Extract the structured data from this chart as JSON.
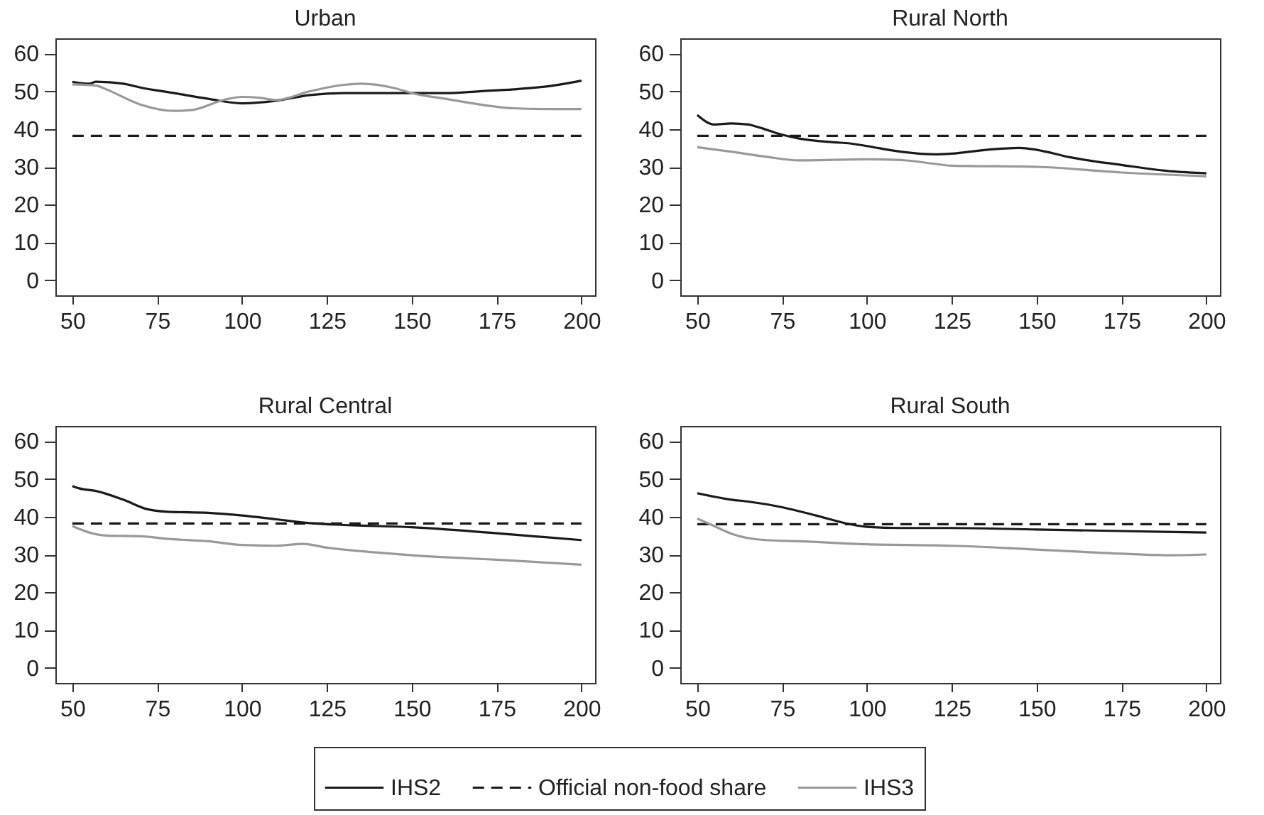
{
  "chart_data": [
    {
      "type": "line",
      "title": "Urban",
      "xlim": [
        45,
        204
      ],
      "ylim": [
        -4,
        64
      ],
      "xticks": [
        50,
        75,
        100,
        125,
        150,
        175,
        200
      ],
      "yticks": [
        0,
        10,
        20,
        30,
        40,
        50,
        60
      ],
      "grid": false,
      "legend": "bottom",
      "series": [
        {
          "name": "IHS2",
          "color": "#1a1a1a",
          "line_style": "solid",
          "x": [
            50,
            55,
            57,
            65,
            70,
            80,
            90,
            100,
            110,
            120,
            130,
            150,
            160,
            170,
            180,
            190,
            200
          ],
          "values": [
            52.5,
            52,
            52.5,
            52,
            51,
            49.5,
            48,
            46.8,
            47.5,
            49,
            49.5,
            49.5,
            49.5,
            50,
            50.5,
            51.3,
            52.8
          ]
        },
        {
          "name": "Official non-food share",
          "color": "#1a1a1a",
          "line_style": "dashed",
          "x": [
            50,
            200
          ],
          "values": [
            38.2,
            38.2
          ]
        },
        {
          "name": "IHS3",
          "color": "#999999",
          "line_style": "solid",
          "x": [
            50,
            57,
            60,
            70,
            80,
            85,
            95,
            100,
            105,
            110,
            120,
            130,
            135,
            145,
            150,
            160,
            170,
            180,
            190,
            200
          ],
          "values": [
            51.8,
            51.5,
            50.5,
            46.5,
            44.8,
            45,
            47.8,
            48.5,
            48.3,
            47.7,
            50,
            51.7,
            52,
            50.8,
            49.5,
            48,
            46.5,
            45.5,
            45.3,
            45.3
          ]
        }
      ]
    },
    {
      "type": "line",
      "title": "Rural North",
      "xlim": [
        45,
        204
      ],
      "ylim": [
        -4,
        64
      ],
      "xticks": [
        50,
        75,
        100,
        125,
        150,
        175,
        200
      ],
      "yticks": [
        0,
        10,
        20,
        30,
        40,
        50,
        60
      ],
      "grid": false,
      "legend": "bottom",
      "series": [
        {
          "name": "IHS2",
          "color": "#1a1a1a",
          "line_style": "solid",
          "x": [
            50,
            55,
            60,
            65,
            68,
            75,
            80,
            90,
            95,
            100,
            110,
            120,
            125,
            135,
            145,
            150,
            160,
            175,
            190,
            200
          ],
          "values": [
            43.7,
            41.2,
            41.5,
            41.2,
            40.5,
            38.5,
            37.5,
            36.5,
            36.2,
            35.5,
            34,
            33.3,
            33.5,
            34.5,
            35,
            34.5,
            32.5,
            30.5,
            28.8,
            28.3
          ]
        },
        {
          "name": "Official non-food share",
          "color": "#1a1a1a",
          "line_style": "dashed",
          "x": [
            50,
            200
          ],
          "values": [
            38.2,
            38.2
          ]
        },
        {
          "name": "IHS3",
          "color": "#999999",
          "line_style": "solid",
          "x": [
            50,
            60,
            70,
            80,
            100,
            110,
            120,
            125,
            150,
            175,
            200
          ],
          "values": [
            35.2,
            34,
            32.7,
            31.7,
            32,
            31.8,
            30.8,
            30.3,
            30,
            28.5,
            27.5
          ]
        }
      ]
    },
    {
      "type": "line",
      "title": "Rural Central",
      "xlim": [
        45,
        204
      ],
      "ylim": [
        -4,
        64
      ],
      "xticks": [
        50,
        75,
        100,
        125,
        150,
        175,
        200
      ],
      "yticks": [
        0,
        10,
        20,
        30,
        40,
        50,
        60
      ],
      "grid": false,
      "legend": "bottom",
      "series": [
        {
          "name": "IHS2",
          "color": "#1a1a1a",
          "line_style": "solid",
          "x": [
            50,
            52,
            57,
            65,
            72,
            78,
            90,
            100,
            110,
            120,
            130,
            150,
            175,
            200
          ],
          "values": [
            48.1,
            47.5,
            46.8,
            44.5,
            42,
            41.3,
            41,
            40.3,
            39.3,
            38.3,
            37.8,
            37.2,
            35.6,
            33.8
          ]
        },
        {
          "name": "Official non-food share",
          "color": "#1a1a1a",
          "line_style": "dashed",
          "x": [
            50,
            200
          ],
          "values": [
            38.2,
            38.2
          ]
        },
        {
          "name": "IHS3",
          "color": "#999999",
          "line_style": "solid",
          "x": [
            50,
            55,
            60,
            70,
            80,
            90,
            100,
            110,
            118,
            125,
            140,
            150,
            175,
            200
          ],
          "values": [
            37.5,
            35.8,
            35,
            34.8,
            34,
            33.5,
            32.5,
            32.3,
            32.8,
            31.8,
            30.5,
            29.8,
            28.6,
            27.3
          ]
        }
      ]
    },
    {
      "type": "line",
      "title": "Rural South",
      "xlim": [
        45,
        204
      ],
      "ylim": [
        -4,
        64
      ],
      "xticks": [
        50,
        75,
        100,
        125,
        150,
        175,
        200
      ],
      "yticks": [
        0,
        10,
        20,
        30,
        40,
        50,
        60
      ],
      "grid": false,
      "legend": "bottom",
      "series": [
        {
          "name": "IHS2",
          "color": "#1a1a1a",
          "line_style": "solid",
          "x": [
            50,
            60,
            65,
            75,
            85,
            95,
            100,
            110,
            125,
            150,
            175,
            200
          ],
          "values": [
            46.2,
            44.5,
            44,
            42.5,
            40.3,
            38,
            37.3,
            37,
            37,
            36.6,
            36.2,
            35.8
          ]
        },
        {
          "name": "Official non-food share",
          "color": "#1a1a1a",
          "line_style": "dashed",
          "x": [
            50,
            200
          ],
          "values": [
            38,
            38
          ]
        },
        {
          "name": "IHS3",
          "color": "#999999",
          "line_style": "solid",
          "x": [
            50,
            55,
            60,
            70,
            80,
            100,
            120,
            125,
            150,
            175,
            190,
            200
          ],
          "values": [
            39.5,
            37.5,
            35.5,
            33.8,
            33.5,
            32.7,
            32.4,
            32.3,
            31.3,
            30.2,
            29.8,
            30
          ]
        }
      ]
    }
  ]
}
